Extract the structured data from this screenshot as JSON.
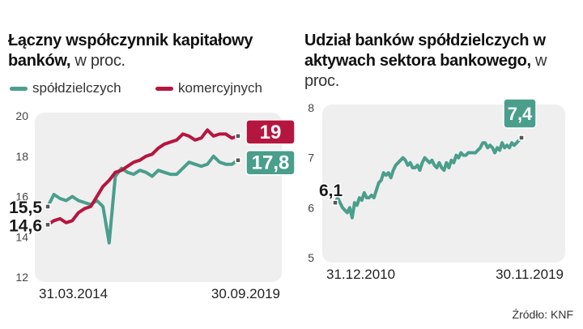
{
  "chart_data": [
    {
      "type": "line",
      "title_bold": "Łączny współczynnik kapitałowy banków,",
      "title_light": " w proc.",
      "x_start_label": "31.03.2014",
      "x_end_label": "30.09.2019",
      "ylim": [
        12,
        20
      ],
      "yticks": [
        "12",
        "14",
        "16",
        "18",
        "20"
      ],
      "grid": false,
      "legend_position": "top",
      "series": [
        {
          "name": "spółdzielczych",
          "color": "#4a9e8c",
          "start_label": "15,5",
          "end_label": "17,8",
          "values": [
            15.5,
            16.1,
            15.9,
            15.8,
            16.0,
            15.8,
            15.7,
            15.6,
            15.8,
            15.5,
            13.7,
            17.0,
            17.4,
            17.2,
            17.1,
            17.3,
            17.2,
            17.0,
            17.3,
            17.2,
            17.1,
            17.1,
            17.4,
            17.7,
            17.6,
            17.5,
            17.6,
            18.0,
            17.7,
            17.6,
            17.6,
            17.8
          ]
        },
        {
          "name": "komercyjnych",
          "color": "#b5163f",
          "start_label": "14,6",
          "end_label": "19",
          "values": [
            14.6,
            14.8,
            14.9,
            14.7,
            14.8,
            15.2,
            15.4,
            15.5,
            16.0,
            16.5,
            16.8,
            17.2,
            17.3,
            17.5,
            17.7,
            17.8,
            18.0,
            18.1,
            18.4,
            18.6,
            18.7,
            18.8,
            19.1,
            19.0,
            18.8,
            18.9,
            19.3,
            19.0,
            19.1,
            19.1,
            18.9,
            19.0
          ]
        }
      ]
    },
    {
      "type": "line",
      "title_bold": "Udział banków spółdzielczych w aktywach sektora bankowego,",
      "title_light": " w proc.",
      "x_start_label": "31.12.2010",
      "x_end_label": "30.11.2019",
      "ylim": [
        5,
        8
      ],
      "yticks": [
        "5",
        "6",
        "7",
        "8"
      ],
      "grid": false,
      "series": [
        {
          "color": "#4a9e8c",
          "start_label": "6,1",
          "end_label": "7,4",
          "values": [
            6.1,
            6.2,
            6.1,
            6.0,
            5.95,
            5.9,
            6.0,
            5.8,
            6.1,
            6.05,
            6.2,
            6.15,
            6.3,
            6.2,
            6.2,
            6.25,
            6.2,
            6.35,
            6.5,
            6.55,
            6.7,
            6.65,
            6.7,
            6.6,
            6.75,
            6.85,
            6.9,
            6.95,
            7.0,
            6.95,
            6.85,
            6.9,
            6.8,
            6.8,
            6.85,
            6.75,
            6.9,
            7.0,
            6.95,
            6.9,
            6.95,
            6.85,
            6.8,
            6.9,
            6.8,
            6.75,
            6.9,
            6.8,
            6.95,
            6.9,
            7.05,
            7.0,
            7.1,
            7.05,
            7.05,
            7.1,
            7.1,
            7.1,
            7.1,
            7.15,
            7.2,
            7.3,
            7.3,
            7.2,
            7.25,
            7.2,
            7.1,
            7.2,
            7.15,
            7.3,
            7.2,
            7.25,
            7.2,
            7.3,
            7.25,
            7.3,
            7.35,
            7.4
          ]
        }
      ]
    }
  ],
  "source": "Źródło: KNF"
}
